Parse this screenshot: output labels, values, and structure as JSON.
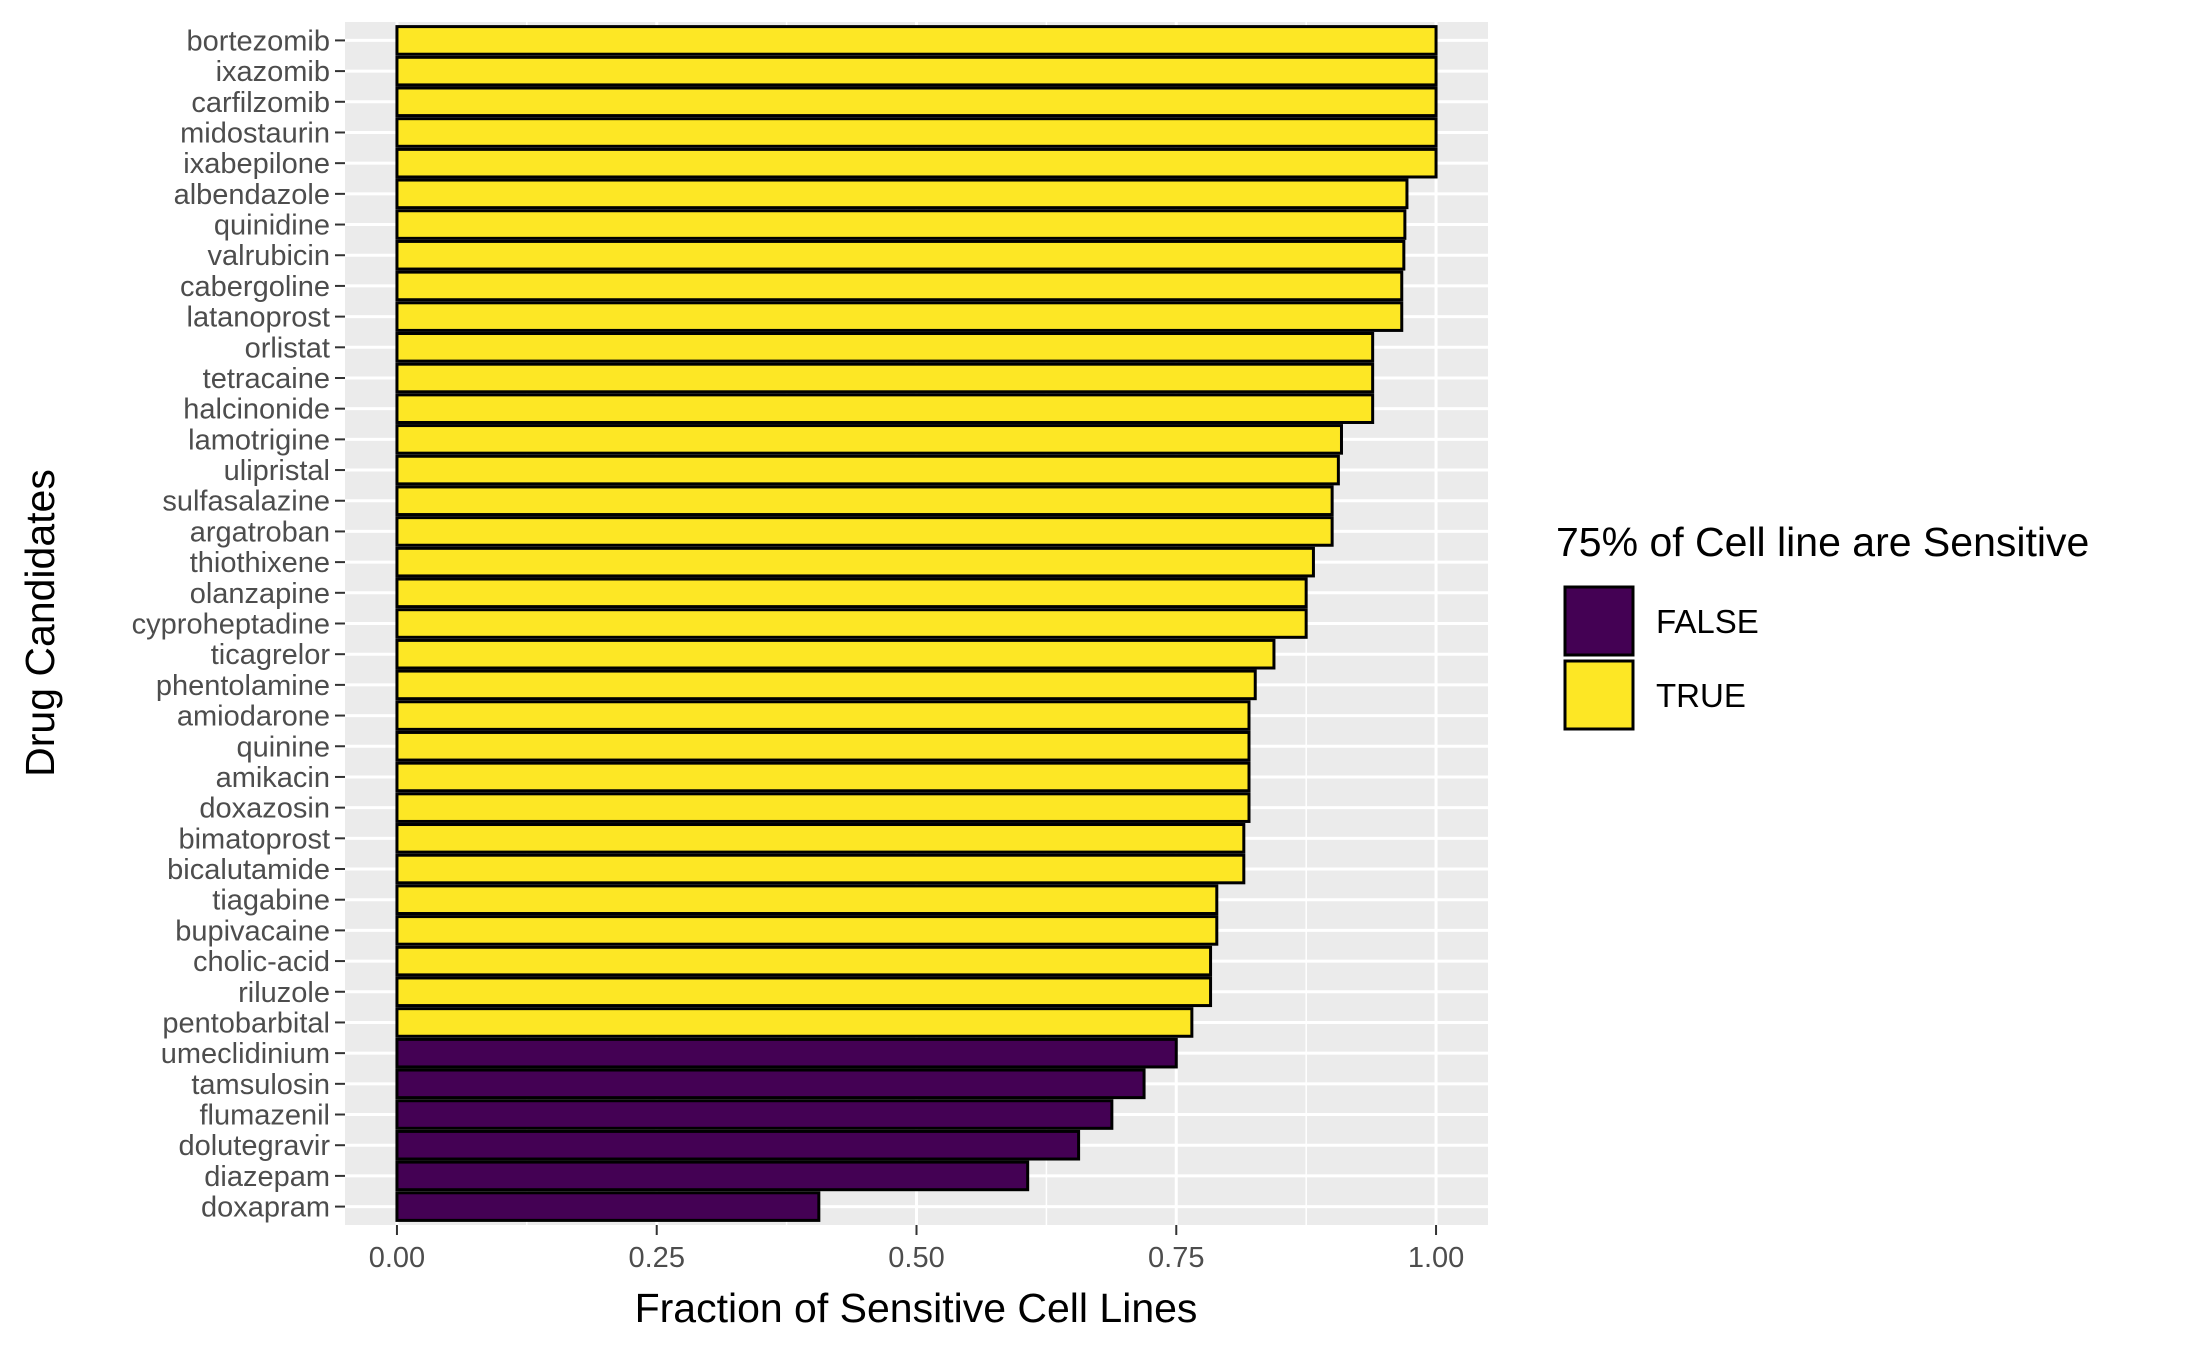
{
  "chart_data": {
    "type": "bar",
    "orientation": "horizontal",
    "xlabel": "Fraction of Sensitive Cell Lines",
    "ylabel": "Drug Candidates",
    "xlim": [
      -0.05,
      1.05
    ],
    "xticks": [
      0,
      0.25,
      0.5,
      0.75,
      1
    ],
    "xtick_labels": [
      "0.00",
      "0.25",
      "0.50",
      "0.75",
      "1.00"
    ],
    "grid": true,
    "legend": {
      "title": "75% of Cell line are Sensitive",
      "placement": "right",
      "items": [
        {
          "label": "FALSE",
          "color": "#440154"
        },
        {
          "label": "TRUE",
          "color": "#FDE725"
        }
      ]
    },
    "categories": [
      "bortezomib",
      "ixazomib",
      "carfilzomib",
      "midostaurin",
      "ixabepilone",
      "albendazole",
      "quinidine",
      "valrubicin",
      "cabergoline",
      "latanoprost",
      "orlistat",
      "tetracaine",
      "halcinonide",
      "lamotrigine",
      "ulipristal",
      "sulfasalazine",
      "argatroban",
      "thiothixene",
      "olanzapine",
      "cyproheptadine",
      "ticagrelor",
      "phentolamine",
      "amiodarone",
      "quinine",
      "amikacin",
      "doxazosin",
      "bimatoprost",
      "bicalutamide",
      "tiagabine",
      "bupivacaine",
      "cholic-acid",
      "riluzole",
      "pentobarbital",
      "umeclidinium",
      "tamsulosin",
      "flumazenil",
      "dolutegravir",
      "diazepam",
      "doxapram"
    ],
    "values": [
      1.0,
      1.0,
      1.0,
      1.0,
      1.0,
      0.972,
      0.97,
      0.969,
      0.967,
      0.967,
      0.939,
      0.939,
      0.939,
      0.909,
      0.906,
      0.9,
      0.9,
      0.882,
      0.875,
      0.875,
      0.844,
      0.826,
      0.82,
      0.82,
      0.82,
      0.82,
      0.815,
      0.815,
      0.789,
      0.789,
      0.783,
      0.783,
      0.765,
      0.75,
      0.719,
      0.688,
      0.656,
      0.607,
      0.406
    ],
    "groups": [
      "TRUE",
      "TRUE",
      "TRUE",
      "TRUE",
      "TRUE",
      "TRUE",
      "TRUE",
      "TRUE",
      "TRUE",
      "TRUE",
      "TRUE",
      "TRUE",
      "TRUE",
      "TRUE",
      "TRUE",
      "TRUE",
      "TRUE",
      "TRUE",
      "TRUE",
      "TRUE",
      "TRUE",
      "TRUE",
      "TRUE",
      "TRUE",
      "TRUE",
      "TRUE",
      "TRUE",
      "TRUE",
      "TRUE",
      "TRUE",
      "TRUE",
      "TRUE",
      "TRUE",
      "FALSE",
      "FALSE",
      "FALSE",
      "FALSE",
      "FALSE",
      "FALSE"
    ],
    "colors": {
      "FALSE": "#440154",
      "TRUE": "#FDE725",
      "panel": "#EBEBEB",
      "grid": "#FFFFFF",
      "bar_outline": "#000000"
    }
  }
}
